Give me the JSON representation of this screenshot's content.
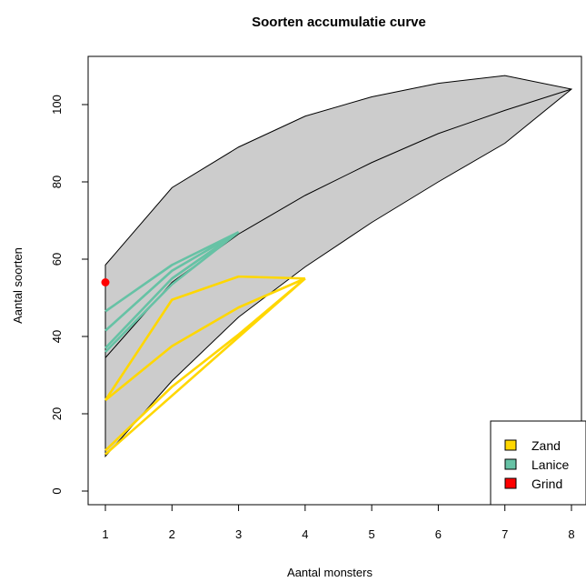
{
  "chart_data": {
    "type": "area",
    "title": "Soorten accumulatie curve",
    "xlabel": "Aantal monsters",
    "ylabel": "Aantal soorten",
    "xlim": [
      1,
      8
    ],
    "ylim": [
      0,
      110
    ],
    "xticks": [
      1,
      2,
      3,
      4,
      5,
      6,
      7,
      8
    ],
    "yticks": [
      0,
      20,
      40,
      60,
      80,
      100
    ],
    "grid": false,
    "legend_position": "bottom-right",
    "envelope": {
      "x": [
        1,
        2,
        3,
        4,
        5,
        6,
        7,
        8
      ],
      "upper": [
        58.5,
        78.5,
        89,
        97,
        102,
        105.5,
        107.5,
        104
      ],
      "lower": [
        9,
        28.5,
        45,
        58,
        69.5,
        80,
        90,
        104
      ],
      "fill": "#cccccc"
    },
    "mean_curve": {
      "x": [
        1,
        2,
        3,
        4,
        5,
        6,
        7,
        8
      ],
      "values": [
        34.5,
        54,
        66.5,
        76.5,
        85,
        92.5,
        98.5,
        104
      ]
    },
    "series": [
      {
        "name": "Zand",
        "color": "#ffd700",
        "lines": [
          {
            "x": [
              1,
              2,
              3,
              4
            ],
            "y": [
              23.5,
              37.5,
              47.5,
              55
            ]
          },
          {
            "x": [
              1,
              2,
              3,
              4
            ],
            "y": [
              23.5,
              49.5,
              55.5,
              55
            ]
          },
          {
            "x": [
              1,
              4
            ],
            "y": [
              9.5,
              55
            ]
          },
          {
            "x": [
              1,
              2,
              3,
              4
            ],
            "y": [
              10.5,
              27,
              40.5,
              55
            ]
          }
        ]
      },
      {
        "name": "Lanice",
        "color": "#66c2a5",
        "lines": [
          {
            "x": [
              1,
              2,
              3
            ],
            "y": [
              46.5,
              58.5,
              67
            ]
          },
          {
            "x": [
              1,
              2,
              3
            ],
            "y": [
              41.5,
              57,
              67
            ]
          },
          {
            "x": [
              1,
              2,
              3
            ],
            "y": [
              37,
              55,
              67
            ]
          },
          {
            "x": [
              1,
              2,
              3
            ],
            "y": [
              36,
              53.5,
              67
            ]
          }
        ]
      },
      {
        "name": "Grind",
        "color": "#ff0000",
        "points": [
          {
            "x": 1,
            "y": 54
          }
        ]
      }
    ]
  }
}
